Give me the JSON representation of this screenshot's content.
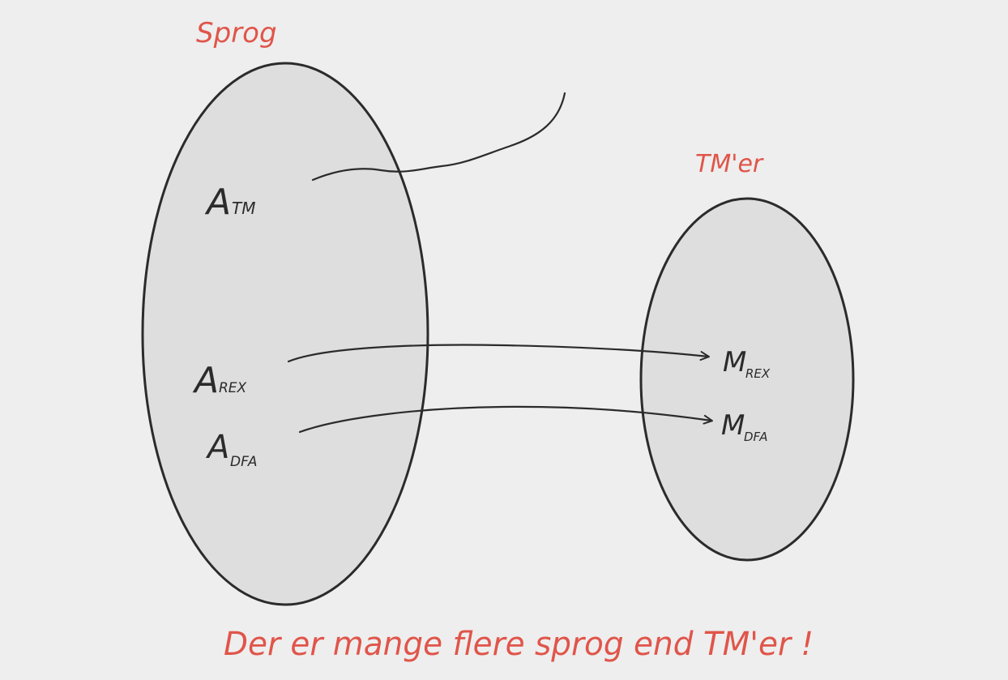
{
  "colors": {
    "background": "#eeeeee",
    "set_fill": "#dedede",
    "ink": "#2b2b2b",
    "annotation": "#e0554a"
  },
  "sets": {
    "left_label": "Sprog",
    "right_label": "TM'er"
  },
  "elements": {
    "atm": {
      "main": "A",
      "sub": "TM"
    },
    "arex": {
      "main": "A",
      "sub": "REX"
    },
    "adfa": {
      "main": "A",
      "sub": "DFA"
    },
    "mrex": {
      "main": "M",
      "sub": "REX"
    },
    "mdfa": {
      "main": "M",
      "sub": "DFA"
    }
  },
  "footer": {
    "text": "Der er mange flere sprog end TM'er !"
  }
}
